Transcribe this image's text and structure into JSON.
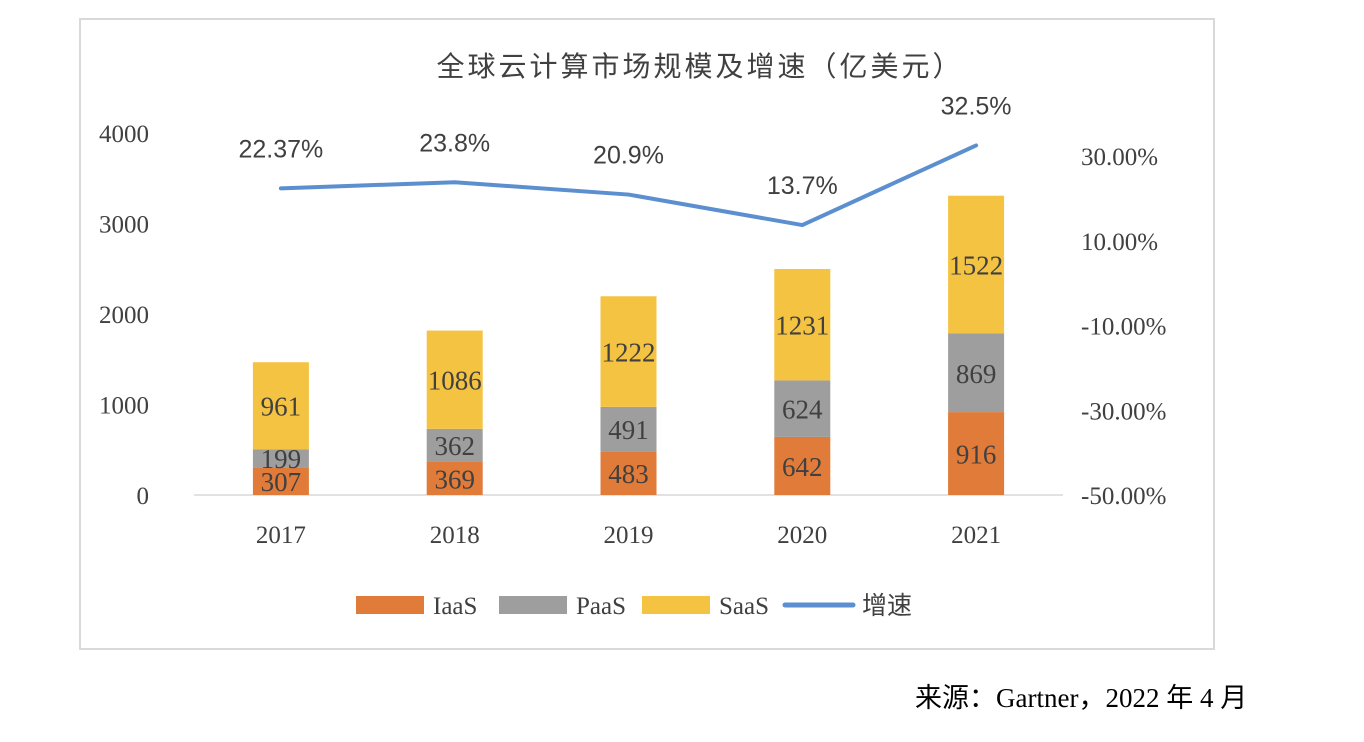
{
  "chart_data": {
    "type": "bar",
    "title": "全球云计算市场规模及增速（亿美元）",
    "categories": [
      "2017",
      "2018",
      "2019",
      "2020",
      "2021"
    ],
    "stacked": true,
    "series": [
      {
        "name": "IaaS",
        "color": "#e07b39",
        "values": [
          307,
          369,
          483,
          642,
          916
        ]
      },
      {
        "name": "PaaS",
        "color": "#9e9e9e",
        "values": [
          199,
          362,
          491,
          624,
          869
        ]
      },
      {
        "name": "SaaS",
        "color": "#f5c342",
        "values": [
          961,
          1086,
          1222,
          1231,
          1522
        ]
      }
    ],
    "line_series": {
      "name": "增速",
      "color": "#5b8fd0",
      "axis": "right",
      "values": [
        22.37,
        23.8,
        20.9,
        13.7,
        32.5
      ],
      "labels": [
        "22.37%",
        "23.8%",
        "20.9%",
        "13.7%",
        "32.5%"
      ]
    },
    "left_axis": {
      "ylim": [
        0,
        4000
      ],
      "ticks": [
        "0",
        "1000",
        "2000",
        "3000",
        "4000"
      ]
    },
    "right_axis": {
      "ylim": [
        -50,
        30
      ],
      "ticks": [
        "-50.00%",
        "-30.00%",
        "-10.00%",
        "10.00%",
        "30.00%"
      ]
    },
    "legend_position": "bottom",
    "grid": false
  },
  "source_note": "来源：Gartner，2022 年 4 月"
}
